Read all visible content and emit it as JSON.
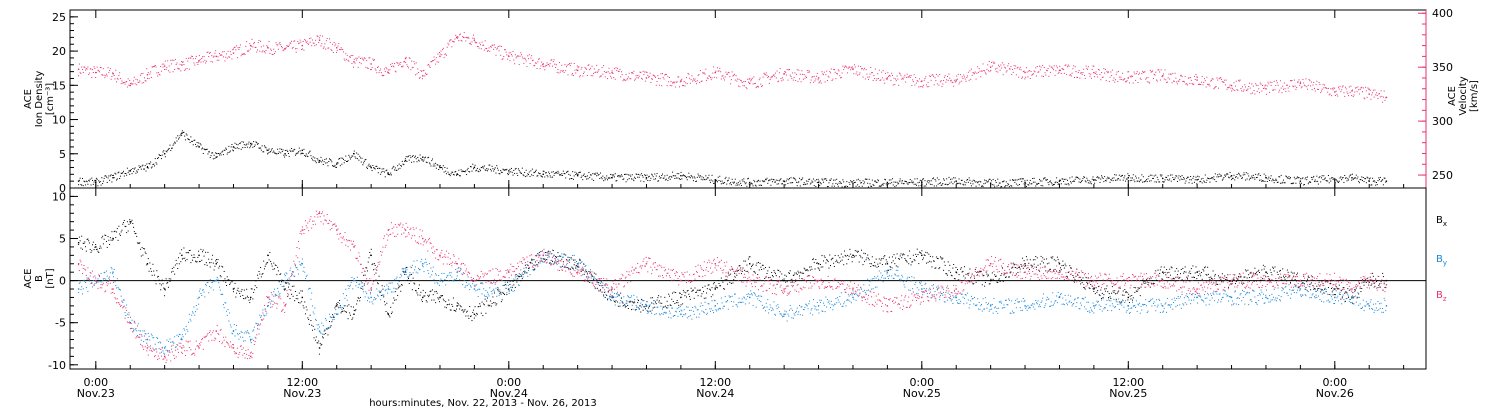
{
  "xlabel": "hours:minutes, Nov. 22, 2013 - Nov. 26, 2013",
  "x_ticks": [
    {
      "time": "0:00",
      "date": "Nov.23"
    },
    {
      "time": "12:00",
      "date": "Nov.23"
    },
    {
      "time": "0:00",
      "date": "Nov.24"
    },
    {
      "time": "12:00",
      "date": "Nov.24"
    },
    {
      "time": "0:00",
      "date": "Nov.25"
    },
    {
      "time": "12:00",
      "date": "Nov.25"
    },
    {
      "time": "0:00",
      "date": "Nov.26"
    }
  ],
  "colors": {
    "black": "#000000",
    "pink": "#e8336a",
    "blue": "#1a86d8"
  },
  "chart_data": [
    {
      "type": "scatter",
      "panel": "top",
      "x_unit": "hours since Nov. 23, 2013 00:00",
      "xlim": [
        -1.5,
        77.3
      ],
      "left_axis": {
        "label_lines": [
          "ACE",
          "Ion Density",
          "[cm⁻³]"
        ],
        "ylim": [
          0,
          26
        ],
        "ticks": [
          0,
          5,
          10,
          15,
          20,
          25
        ]
      },
      "right_axis": {
        "label_lines": [
          "ACE",
          "Velocity",
          "[km/s]"
        ],
        "ylim": [
          238,
          403
        ],
        "ticks": [
          250,
          300,
          350,
          400
        ]
      },
      "series": [
        {
          "axis": "left",
          "color": "#000000",
          "x": [
            -1.0,
            0,
            1,
            2,
            3,
            4,
            5,
            6,
            7,
            8,
            9,
            10,
            11,
            12,
            13,
            14,
            15,
            16,
            17,
            18,
            19,
            20,
            21,
            22,
            24,
            26,
            28,
            30,
            32,
            34,
            36,
            38,
            40,
            42,
            44,
            46,
            48,
            50,
            52,
            54,
            56,
            58,
            60,
            62,
            64,
            66,
            68,
            70,
            72,
            73,
            74,
            75
          ],
          "values": [
            1.0,
            0.8,
            1.5,
            2.5,
            3,
            5,
            8,
            6,
            4.5,
            6,
            6.5,
            5.5,
            5,
            5.5,
            4,
            3.5,
            5,
            3,
            2,
            4,
            4.5,
            3,
            2,
            3,
            2.5,
            2,
            1.8,
            1.5,
            1.5,
            1.8,
            1.2,
            0.8,
            1,
            0.8,
            0.7,
            0.8,
            0.8,
            1,
            0.7,
            0.8,
            1,
            1.2,
            1.5,
            1.4,
            1.2,
            1.8,
            1.5,
            1,
            1.3,
            1.5,
            1,
            1
          ]
        },
        {
          "axis": "right",
          "color": "#e8336a",
          "x": [
            -1.0,
            0,
            1,
            2,
            3,
            4,
            5,
            6,
            7,
            8,
            9,
            10,
            11,
            12,
            13,
            14,
            15,
            16,
            17,
            18,
            19,
            20,
            21,
            22,
            24,
            26,
            28,
            30,
            32,
            34,
            36,
            38,
            40,
            42,
            44,
            46,
            48,
            50,
            52,
            54,
            56,
            58,
            60,
            62,
            64,
            66,
            68,
            70,
            72,
            73,
            74,
            75
          ],
          "values": [
            348,
            345,
            344,
            333,
            343,
            351,
            352,
            356,
            360,
            363,
            370,
            368,
            367,
            370,
            375,
            368,
            355,
            353,
            345,
            358,
            342,
            360,
            378,
            375,
            360,
            353,
            347,
            345,
            340,
            337,
            345,
            335,
            344,
            340,
            348,
            340,
            337,
            338,
            350,
            345,
            347,
            345,
            340,
            342,
            338,
            333,
            330,
            335,
            327,
            328,
            325,
            322
          ]
        }
      ]
    },
    {
      "type": "scatter",
      "panel": "bottom",
      "x_unit": "hours since Nov. 23, 2013 00:00",
      "xlim": [
        -1.5,
        77.3
      ],
      "left_axis": {
        "label_lines": [
          "ACE",
          "B",
          "[nT]"
        ],
        "ylim": [
          -10.5,
          11
        ],
        "ticks": [
          -10,
          -5,
          0,
          5,
          10
        ]
      },
      "reference_line": 0,
      "series": [
        {
          "name": "Bx",
          "color": "#000000",
          "x": [
            -1.0,
            0,
            1,
            2,
            3,
            4,
            5,
            6,
            7,
            8,
            9,
            10,
            11,
            12,
            13,
            14,
            15,
            16,
            17,
            18,
            19,
            20,
            21,
            22,
            24,
            26,
            28,
            30,
            32,
            34,
            36,
            38,
            40,
            42,
            44,
            46,
            48,
            50,
            52,
            54,
            56,
            58,
            60,
            62,
            64,
            66,
            68,
            70,
            72,
            73,
            74,
            75
          ],
          "values": [
            4.5,
            4,
            5,
            7,
            2,
            -1,
            3,
            3,
            2,
            -1,
            -2,
            3,
            -1,
            -2,
            -8,
            -3,
            -4,
            3,
            -4,
            1,
            -2,
            -2,
            -3,
            -4,
            -1,
            3,
            2,
            -2,
            -3,
            -2,
            -1,
            2,
            0,
            2,
            3,
            2,
            3,
            1,
            0,
            2,
            2,
            -1,
            -2,
            1,
            1,
            0,
            1,
            0,
            -1,
            -2,
            0,
            0
          ]
        },
        {
          "name": "By",
          "color": "#1a86d8",
          "x": [
            -1.0,
            0,
            1,
            2,
            3,
            4,
            5,
            6,
            7,
            8,
            9,
            10,
            11,
            12,
            13,
            14,
            15,
            16,
            17,
            18,
            19,
            20,
            21,
            22,
            24,
            26,
            28,
            30,
            32,
            34,
            36,
            38,
            40,
            42,
            44,
            46,
            48,
            50,
            52,
            54,
            56,
            58,
            60,
            62,
            64,
            66,
            68,
            70,
            72,
            73,
            74,
            75
          ],
          "values": [
            -1,
            0,
            1,
            -5,
            -7,
            -8,
            -7,
            -2,
            0,
            -6,
            -7,
            -3,
            0,
            2,
            -6,
            -4,
            0,
            -2,
            -1,
            1,
            2,
            0,
            1,
            -1,
            -1,
            3,
            2,
            -2,
            -3,
            -4,
            -3,
            -2,
            -4,
            -3,
            -2,
            1,
            -1,
            -2,
            -3,
            -3,
            -2,
            -3,
            -3,
            -3,
            -2,
            -2,
            -2,
            -1,
            -2,
            -2,
            -3,
            -3
          ]
        },
        {
          "name": "Bz",
          "color": "#e8336a",
          "x": [
            -1.0,
            0,
            1,
            2,
            3,
            4,
            5,
            6,
            7,
            8,
            9,
            10,
            11,
            12,
            13,
            14,
            15,
            16,
            17,
            18,
            19,
            20,
            21,
            22,
            24,
            26,
            28,
            30,
            32,
            34,
            36,
            38,
            40,
            42,
            44,
            46,
            48,
            50,
            52,
            54,
            56,
            58,
            60,
            62,
            64,
            66,
            68,
            70,
            72,
            73,
            74,
            75
          ],
          "values": [
            2,
            0,
            -1,
            -5,
            -8,
            -9,
            -8,
            -8,
            -6,
            -8,
            -9,
            -2,
            -3,
            6,
            8,
            6,
            4,
            -1,
            6,
            6,
            5,
            3,
            2,
            0,
            1,
            3,
            1,
            -1,
            2,
            0,
            2,
            0,
            -1,
            0,
            -1,
            -3,
            -2,
            -1,
            2,
            1,
            1,
            0,
            0,
            0,
            -1,
            0,
            0,
            0,
            0,
            -1,
            0,
            -0.5
          ]
        }
      ]
    }
  ]
}
